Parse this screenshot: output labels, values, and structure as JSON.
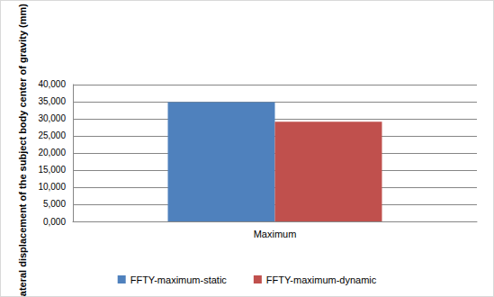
{
  "chart_data": {
    "type": "bar",
    "y_label": "Lateral displacement of the subject body center of gravity (mm)",
    "categories": [
      "Maximum"
    ],
    "series": [
      {
        "name": "FFTY-maximum-static",
        "color": "#4f81bd",
        "values": [
          34.85
        ]
      },
      {
        "name": "FFTY-maximum-dynamic",
        "color": "#c0504d",
        "values": [
          29.1
        ]
      }
    ],
    "ylim": [
      0,
      40
    ],
    "yticks": [
      {
        "value": 0,
        "label": "0,000"
      },
      {
        "value": 5,
        "label": "5,000"
      },
      {
        "value": 10,
        "label": "10,000"
      },
      {
        "value": 15,
        "label": "15,000"
      },
      {
        "value": 20,
        "label": "20,000"
      },
      {
        "value": 25,
        "label": "25,000"
      },
      {
        "value": 30,
        "label": "30,000"
      },
      {
        "value": 35,
        "label": "35,000"
      },
      {
        "value": 40,
        "label": "40,000"
      }
    ],
    "grid": true,
    "legend": "bottom"
  }
}
